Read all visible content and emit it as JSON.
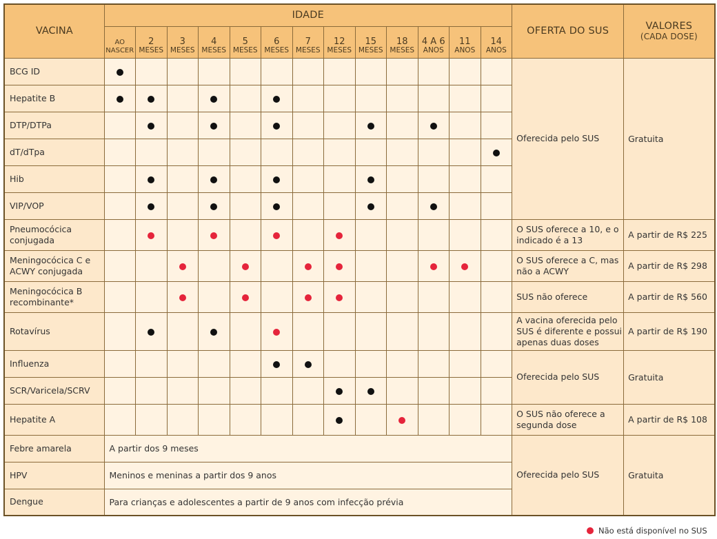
{
  "colors": {
    "header": "#f6c27a",
    "name_cell": "#fde8cb",
    "cell": "#fff3e2",
    "border": "#8a6a3a",
    "dot_black": "#111111",
    "dot_red": "#e5243b"
  },
  "header": {
    "vacina": "VACINA",
    "idade": "IDADE",
    "oferta": "OFERTA DO SUS",
    "valores_1": "VALORES",
    "valores_2": "(CADA DOSE)"
  },
  "ages": [
    {
      "num": "",
      "unit": "AO NASCER"
    },
    {
      "num": "2",
      "unit": "MESES"
    },
    {
      "num": "3",
      "unit": "MESES"
    },
    {
      "num": "4",
      "unit": "MESES"
    },
    {
      "num": "5",
      "unit": "MESES"
    },
    {
      "num": "6",
      "unit": "MESES"
    },
    {
      "num": "7",
      "unit": "MESES"
    },
    {
      "num": "12",
      "unit": "MESES"
    },
    {
      "num": "15",
      "unit": "MESES"
    },
    {
      "num": "18",
      "unit": "MESES"
    },
    {
      "num": "4 A 6",
      "unit": "ANOS"
    },
    {
      "num": "11",
      "unit": "ANOS"
    },
    {
      "num": "14",
      "unit": "ANOS"
    }
  ],
  "vaccines": [
    {
      "name": "BCG ID",
      "doses": [
        "b",
        "",
        "",
        "",
        "",
        "",
        "",
        "",
        "",
        "",
        "",
        "",
        ""
      ]
    },
    {
      "name": "Hepatite B",
      "doses": [
        "b",
        "b",
        "",
        "b",
        "",
        "b",
        "",
        "",
        "",
        "",
        "",
        "",
        ""
      ]
    },
    {
      "name": "DTP/DTPa",
      "doses": [
        "",
        "b",
        "",
        "b",
        "",
        "b",
        "",
        "",
        "b",
        "",
        "b",
        "",
        ""
      ]
    },
    {
      "name": "dT/dTpa",
      "doses": [
        "",
        "",
        "",
        "",
        "",
        "",
        "",
        "",
        "",
        "",
        "",
        "",
        "b"
      ]
    },
    {
      "name": "Hib",
      "doses": [
        "",
        "b",
        "",
        "b",
        "",
        "b",
        "",
        "",
        "b",
        "",
        "",
        "",
        ""
      ]
    },
    {
      "name": "VIP/VOP",
      "doses": [
        "",
        "b",
        "",
        "b",
        "",
        "b",
        "",
        "",
        "b",
        "",
        "b",
        "",
        ""
      ]
    },
    {
      "name": "Pneumocócica conjugada",
      "doses": [
        "",
        "r",
        "",
        "r",
        "",
        "r",
        "",
        "r",
        "",
        "",
        "",
        "",
        ""
      ],
      "oferta": "O SUS oferece a 10, e o indicado é a 13",
      "valor": "A partir de R$ 225"
    },
    {
      "name": "Meningocócica C e ACWY conjugada",
      "doses": [
        "",
        "",
        "r",
        "",
        "r",
        "",
        "r",
        "r",
        "",
        "",
        "r",
        "r",
        ""
      ],
      "oferta": "O SUS oferece a C, mas não a ACWY",
      "valor": "A partir de R$ 298"
    },
    {
      "name": "Meningocócica B recombinante*",
      "doses": [
        "",
        "",
        "r",
        "",
        "r",
        "",
        "r",
        "r",
        "",
        "",
        "",
        "",
        ""
      ],
      "oferta": "SUS não oferece",
      "valor": "A partir de R$ 560"
    },
    {
      "name": "Rotavírus",
      "doses": [
        "",
        "b",
        "",
        "b",
        "",
        "r",
        "",
        "",
        "",
        "",
        "",
        "",
        ""
      ],
      "oferta": "A vacina oferecida pelo SUS é diferente e possui apenas duas doses",
      "valor": "A partir de R$ 190"
    },
    {
      "name": "Influenza",
      "doses": [
        "",
        "",
        "",
        "",
        "",
        "b",
        "b",
        "",
        "",
        "",
        "",
        "",
        ""
      ]
    },
    {
      "name": "SCR/Varicela/SCRV",
      "doses": [
        "",
        "",
        "",
        "",
        "",
        "",
        "",
        "b",
        "b",
        "",
        "",
        "",
        ""
      ]
    },
    {
      "name": "Hepatite A",
      "doses": [
        "",
        "",
        "",
        "",
        "",
        "",
        "",
        "b",
        "",
        "r",
        "",
        "",
        ""
      ],
      "oferta": "O SUS não oferece a segunda dose",
      "valor": "A partir de R$ 108"
    },
    {
      "name": "Febre amarela",
      "span_text": "A partir dos 9 meses"
    },
    {
      "name": "HPV",
      "span_text": "Meninos e meninas a partir dos 9 anos"
    },
    {
      "name": "Dengue",
      "span_text": "Para crianças e adolescentes a partir de 9 anos com infecção prévia"
    }
  ],
  "group_offers": {
    "g1": {
      "oferta": "Oferecida pelo SUS",
      "valor": "Gratuita"
    },
    "g2": {
      "oferta": "Oferecida pelo SUS",
      "valor": "Gratuita"
    },
    "g3": {
      "oferta": "Oferecida pelo SUS",
      "valor": "Gratuita"
    }
  },
  "legend": {
    "text": "Não está disponível no SUS"
  }
}
